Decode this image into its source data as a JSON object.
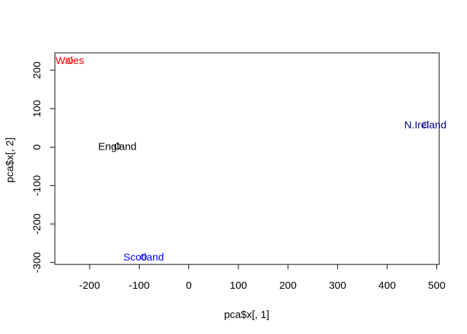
{
  "chart_data": {
    "type": "scatter",
    "title": "",
    "xlabel": "pca$x[, 1]",
    "ylabel": "pca$x[, 2]",
    "xlim": [
      -270,
      505
    ],
    "ylim": [
      -305,
      245
    ],
    "x_ticks": [
      -200,
      -100,
      0,
      100,
      200,
      300,
      400,
      500
    ],
    "y_ticks": [
      -300,
      -200,
      -100,
      0,
      100,
      200
    ],
    "grid": false,
    "legend": "none",
    "points": [
      {
        "label": "England",
        "x": -144,
        "y": 2,
        "color": "#000000"
      },
      {
        "label": "Wales",
        "x": -240,
        "y": 225,
        "color": "#ff0000"
      },
      {
        "label": "Scotland",
        "x": -91,
        "y": -286,
        "color": "#0000ff"
      },
      {
        "label": "N.Ireland",
        "x": 477,
        "y": 58,
        "color": "#000080"
      }
    ]
  }
}
